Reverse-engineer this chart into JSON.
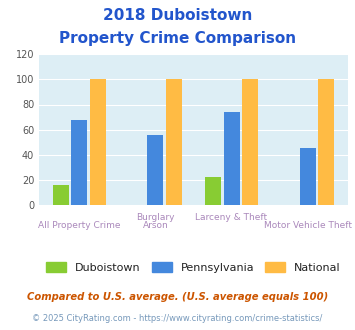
{
  "title_line1": "2018 Duboistown",
  "title_line2": "Property Crime Comparison",
  "duboistown": [
    16,
    0,
    22,
    0
  ],
  "pennsylvania": [
    68,
    56,
    74,
    45
  ],
  "national": [
    100,
    100,
    100,
    100
  ],
  "group_labels_top": [
    "",
    "Burglary",
    "Larceny & Theft",
    ""
  ],
  "group_labels_bot": [
    "All Property Crime",
    "Arson",
    "",
    "Motor Vehicle Theft"
  ],
  "color_duboistown": "#88cc33",
  "color_pennsylvania": "#4488dd",
  "color_national": "#ffbb44",
  "ylim": [
    0,
    120
  ],
  "yticks": [
    0,
    20,
    40,
    60,
    80,
    100,
    120
  ],
  "bg_color": "#ddeef5",
  "title_color": "#2255cc",
  "xlabel_top_color": "#aa88bb",
  "xlabel_bot_color": "#aa88bb",
  "legend_label_color": "#222222",
  "footnote1": "Compared to U.S. average. (U.S. average equals 100)",
  "footnote2": "© 2025 CityRating.com - https://www.cityrating.com/crime-statistics/",
  "footnote1_color": "#cc5500",
  "footnote2_color": "#7799bb"
}
